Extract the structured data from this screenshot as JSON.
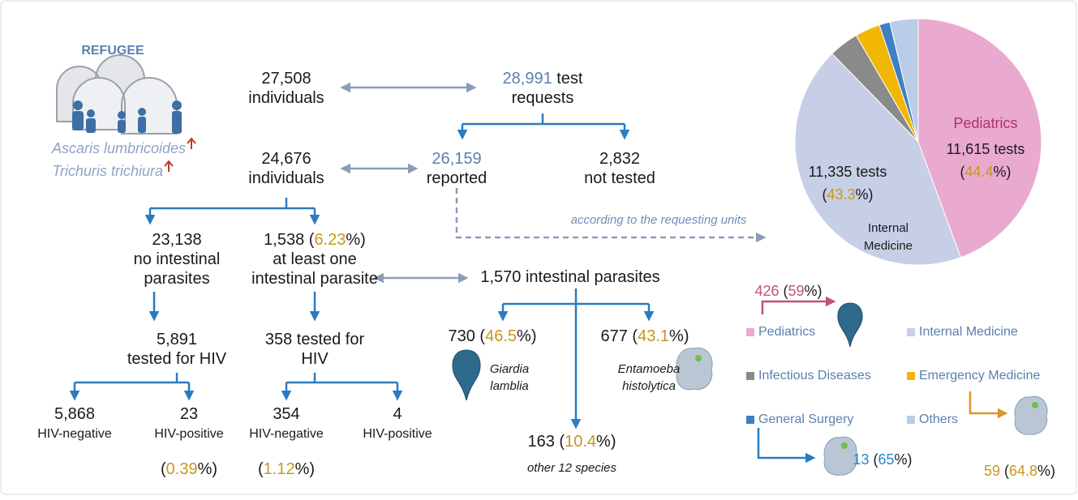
{
  "refugee": {
    "title": "REFUGEE",
    "species": [
      "Ascaris lumbricoides",
      "Trichuris trichiura"
    ]
  },
  "nodes": [
    {
      "lines": [
        [
          "27,508"
        ],
        [
          "individuals"
        ]
      ]
    },
    {
      "lines": [
        [
          {
            "text": "28,991",
            "color": "#5b7fb0"
          },
          " test"
        ],
        [
          "requests"
        ]
      ]
    },
    {
      "lines": [
        [
          "24,676"
        ],
        [
          "individuals"
        ]
      ]
    },
    {
      "lines": [
        [
          {
            "text": "26,159",
            "color": "#5b7fb0"
          }
        ],
        [
          "reported"
        ]
      ]
    },
    {
      "lines": [
        [
          "2,832"
        ],
        [
          "not tested"
        ]
      ]
    },
    {
      "lines": [
        [
          "23,138"
        ],
        [
          "no intestinal"
        ],
        [
          "parasites"
        ]
      ]
    },
    {
      "lines": [
        [
          "1,538 (",
          {
            "text": "6.23",
            "color": "#c8961e"
          },
          "%)"
        ],
        [
          "at least one"
        ],
        [
          "intestinal parasite"
        ]
      ]
    },
    {
      "lines": [
        [
          "1,570 intestinal parasites"
        ]
      ]
    },
    {
      "lines": [
        [
          "5,891"
        ],
        [
          "tested for HIV"
        ]
      ]
    },
    {
      "lines": [
        [
          "358 tested for"
        ],
        [
          "HIV"
        ]
      ]
    },
    {
      "lines": [
        [
          "730 (",
          {
            "text": "46.5",
            "color": "#c8961e"
          },
          "%)"
        ]
      ]
    },
    {
      "lines": [
        [
          "677 (",
          {
            "text": "43.1",
            "color": "#c8961e"
          },
          "%)"
        ]
      ]
    },
    {
      "lines": [
        [
          "Giardia"
        ],
        [
          "lamblia"
        ]
      ],
      "italic": true
    },
    {
      "lines": [
        [
          "Entamoeba"
        ],
        [
          "histolytica"
        ]
      ],
      "italic": true
    },
    {
      "lines": [
        [
          "5,868"
        ],
        [
          "HIV-negative"
        ]
      ]
    },
    {
      "lines": [
        [
          "23"
        ],
        [
          "HIV-positive"
        ]
      ]
    },
    {
      "lines": [
        [
          "(",
          {
            "text": "0.39",
            "color": "#c8961e"
          },
          "%)"
        ]
      ]
    },
    {
      "lines": [
        [
          "354"
        ],
        [
          "HIV-negative"
        ]
      ]
    },
    {
      "lines": [
        [
          "4"
        ],
        [
          "HIV-positive"
        ]
      ]
    },
    {
      "lines": [
        [
          "(",
          {
            "text": "1.12",
            "color": "#c8961e"
          },
          "%)"
        ]
      ]
    },
    {
      "lines": [
        [
          "163 (",
          {
            "text": "10.4",
            "color": "#c8961e"
          },
          "%)"
        ]
      ]
    },
    {
      "lines": [
        [
          "other 12 species"
        ]
      ],
      "italic": true
    },
    {
      "lines": [
        [
          "according to the requesting units"
        ]
      ],
      "italic": true,
      "color": "#6f8fb5"
    },
    {
      "lines": [
        [
          {
            "text": "426",
            "color": "#c0527a"
          },
          " (",
          {
            "text": "59",
            "color": "#c0527a"
          },
          "%)"
        ]
      ]
    },
    {
      "lines": [
        [
          {
            "text": "13",
            "color": "#2e86c8"
          },
          " (",
          {
            "text": "65",
            "color": "#2e86c8"
          },
          "%)"
        ]
      ]
    },
    {
      "lines": [
        [
          {
            "text": "59",
            "color": "#c8961e"
          },
          " (",
          {
            "text": "64.8",
            "color": "#c8961e"
          },
          "%)"
        ]
      ]
    }
  ],
  "pie": {
    "slices": [
      {
        "name": "Pediatrics",
        "color": "#eaa9cf",
        "value": 44.4,
        "inner": [
          "Pediatrics"
        ],
        "labels": [
          [
            "11,615 tests"
          ],
          [
            "(",
            {
              "text": "44.4",
              "color": "#c8961e"
            },
            "%)"
          ]
        ]
      },
      {
        "name": "Internal Medicine",
        "color": "#c7cfe6",
        "value": 43.3,
        "inner": [
          "Internal",
          "Medicine"
        ],
        "labels": [
          [
            "11,335 tests"
          ],
          [
            "(",
            {
              "text": "43.3",
              "color": "#c8961e"
            },
            "%)"
          ]
        ]
      },
      {
        "name": "Infectious Diseases",
        "color": "#8a8a8a",
        "value": 3.9
      },
      {
        "name": "Emergency Medicine",
        "color": "#f2b705",
        "value": 3.3
      },
      {
        "name": "General Surgery",
        "color": "#3f7fc4",
        "value": 1.4
      },
      {
        "name": "Others",
        "color": "#b9cce8",
        "value": 3.7
      }
    ]
  }
}
